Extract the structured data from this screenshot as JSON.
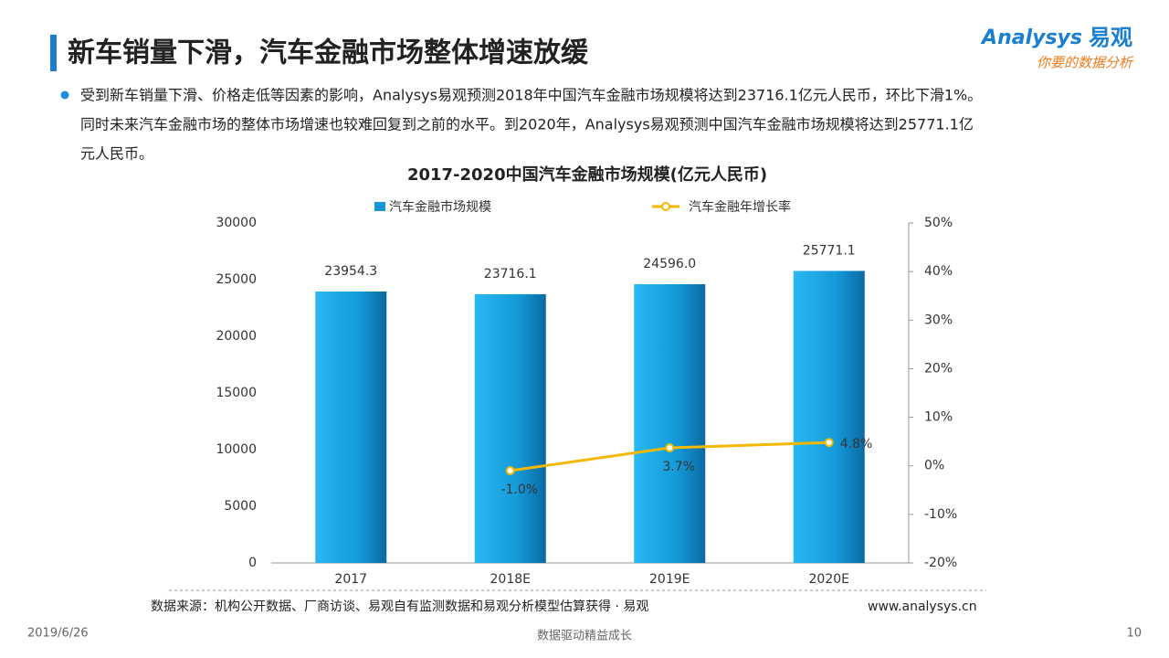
{
  "header": {
    "title": "新车销量下滑，汽车金融市场整体增速放缓"
  },
  "logo": {
    "brand": "Analysys",
    "brand_cn": "易观",
    "slogan": "你要的数据分析"
  },
  "bullet": {
    "lines": [
      "受到新车销量下滑、价格走低等因素的影响，Analysys易观预测2018年中国汽车金融市场规模将达到23716.1亿元人民币，环比下滑1%。",
      "同时未来汽车金融市场的整体市场增速也较难回复到之前的水平。到2020年，Analysys易观预测中国汽车金融市场规模将达到25771.1亿",
      "元人民币。"
    ]
  },
  "chart_data": {
    "type": "combo",
    "title": "2017-2020中国汽车金融市场规模(亿元人民币)",
    "categories": [
      "2017",
      "2018E",
      "2019E",
      "2020E"
    ],
    "series": [
      {
        "name": "汽车金融市场规模",
        "type": "bar",
        "color": "#1597d6",
        "values": [
          23954.3,
          23716.1,
          24596.0,
          25771.1
        ],
        "value_labels": [
          "23954.3",
          "23716.1",
          "24596.0",
          "25771.1"
        ]
      },
      {
        "name": "汽车金融年增长率",
        "type": "line",
        "color": "#f5b800",
        "axis": "y2",
        "values": [
          null,
          -1.0,
          3.7,
          4.8
        ],
        "value_labels": [
          null,
          "-1.0%",
          "3.7%",
          "4.8%"
        ]
      }
    ],
    "ylim": [
      0,
      30000
    ],
    "yticks": [
      0,
      5000,
      10000,
      15000,
      20000,
      25000,
      30000
    ],
    "y2lim": [
      -20,
      50
    ],
    "y2ticks": [
      {
        "value": -20,
        "label": "-20%"
      },
      {
        "value": -10,
        "label": "-10%"
      },
      {
        "value": 0,
        "label": "0%"
      },
      {
        "value": 10,
        "label": "10%"
      },
      {
        "value": 20,
        "label": "20%"
      },
      {
        "value": 30,
        "label": "30%"
      },
      {
        "value": 40,
        "label": "40%"
      },
      {
        "value": 50,
        "label": "50%"
      }
    ],
    "legend": "top",
    "grid": false
  },
  "source": {
    "text": "数据来源：机构公开数据、厂商访谈、易观自有监测数据和易观分析模型估算获得 · 易观",
    "website": "www.analysys.cn"
  },
  "footer": {
    "date": "2019/6/26",
    "slogan": "数据驱动精益成长",
    "page": "10"
  }
}
